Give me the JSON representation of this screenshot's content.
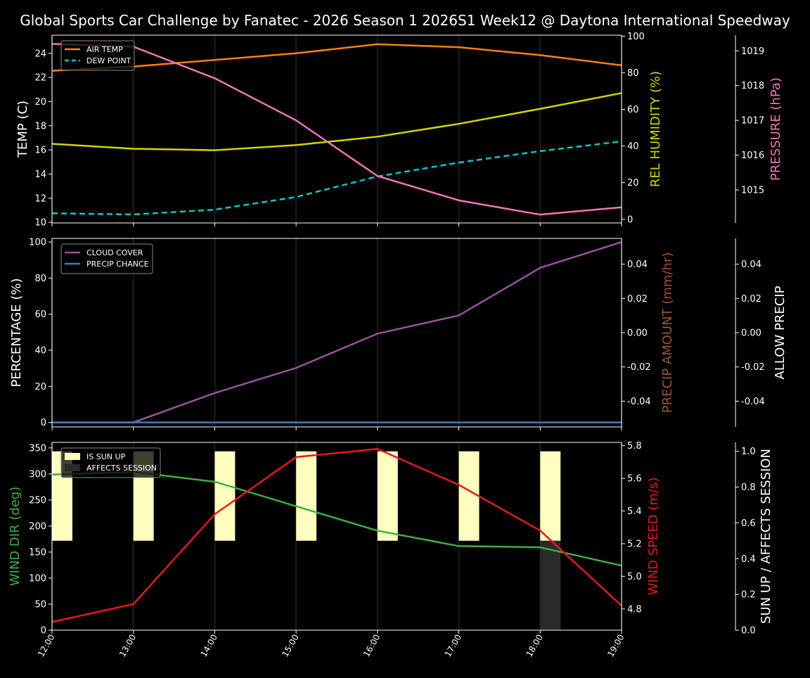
{
  "title": "Global Sports Car Challenge by Fanatec - 2026 Season 1 2026S1 Week12 @ Daytona International Speedway",
  "x_ticks": [
    "12:00",
    "13:00",
    "14:00",
    "15:00",
    "16:00",
    "17:00",
    "18:00",
    "19:00"
  ],
  "chart_data": [
    {
      "type": "line",
      "x": [
        "12:00",
        "13:00",
        "14:00",
        "15:00",
        "16:00",
        "17:00",
        "18:00",
        "19:00"
      ],
      "grid": "vertical",
      "legend": "top-left",
      "axes": [
        {
          "side": "left",
          "label": "TEMP (C)",
          "ylim": [
            9.95,
            25.5
          ],
          "ticks": [
            10,
            12,
            14,
            16,
            18,
            20,
            22,
            24
          ],
          "color": "#ffffff"
        },
        {
          "side": "right",
          "label": "REL HUMIDITY (%)",
          "ylim": [
            -2,
            100.5
          ],
          "ticks": [
            0,
            20,
            40,
            60,
            80,
            100
          ],
          "color": "#d4d400"
        },
        {
          "side": "right-outer",
          "label": "PRESSURE (hPa)",
          "ylim": [
            1014.05,
            1019.45
          ],
          "ticks": [
            1015,
            1016,
            1017,
            1018,
            1019
          ],
          "color": "#f075b8"
        }
      ],
      "series": [
        {
          "name": "AIR TEMP",
          "axis": 0,
          "color": "#ff7f0e",
          "dash": false,
          "legend": true,
          "values": [
            22.55,
            22.9,
            23.45,
            24.0,
            24.75,
            24.5,
            23.85,
            23.0
          ]
        },
        {
          "name": "DEW POINT",
          "axis": 0,
          "color": "#17c3c8",
          "dash": true,
          "legend": true,
          "values": [
            10.75,
            10.65,
            11.05,
            12.1,
            13.8,
            14.95,
            15.9,
            16.7
          ]
        },
        {
          "axis": 1,
          "color": "#d4d400",
          "dash": false,
          "legend": false,
          "values": [
            41.2,
            38.5,
            37.7,
            40.5,
            45.1,
            52.1,
            60.3,
            68.9
          ]
        },
        {
          "axis": 2,
          "color": "#f075b8",
          "dash": false,
          "legend": false,
          "values": [
            1019.2,
            1019.12,
            1018.21,
            1017.0,
            1015.4,
            1014.7,
            1014.29,
            1014.5
          ]
        }
      ]
    },
    {
      "type": "line",
      "x": [
        "12:00",
        "13:00",
        "14:00",
        "15:00",
        "16:00",
        "17:00",
        "18:00",
        "19:00"
      ],
      "grid": "vertical",
      "legend": "top-left",
      "axes": [
        {
          "side": "left",
          "label": "PERCENTAGE (%)",
          "ylim": [
            -2.5,
            102
          ],
          "ticks": [
            0,
            20,
            40,
            60,
            80,
            100
          ],
          "color": "#ffffff"
        },
        {
          "side": "right",
          "label": "PRECIP AMOUNT (mm/hr)",
          "ylim": [
            -0.055,
            0.055
          ],
          "ticks": [
            -0.04,
            -0.02,
            0.0,
            0.02,
            0.04
          ],
          "color": "#a0522d"
        },
        {
          "side": "right-outer",
          "label": "ALLOW PRECIP",
          "ylim": [
            -0.055,
            0.055
          ],
          "ticks": [
            -0.04,
            -0.02,
            0.0,
            0.02,
            0.04
          ],
          "color": "#ffffff"
        }
      ],
      "series": [
        {
          "name": "CLOUD COVER",
          "axis": 0,
          "color": "#9b4f9f",
          "dash": false,
          "legend": true,
          "values": [
            0,
            0,
            16.3,
            30.2,
            49.2,
            59.3,
            85.7,
            100
          ]
        },
        {
          "name": "PRECIP CHANCE",
          "axis": 0,
          "color": "#3a7fc0",
          "dash": false,
          "legend": true,
          "values": [
            0,
            0,
            0,
            0,
            0,
            0,
            0,
            0
          ]
        }
      ]
    },
    {
      "type": "line",
      "x": [
        "12:00",
        "13:00",
        "14:00",
        "15:00",
        "16:00",
        "17:00",
        "18:00",
        "19:00"
      ],
      "grid": "vertical",
      "legend": "top-left",
      "axes": [
        {
          "side": "left",
          "label": "WIND DIR (deg)",
          "ylim": [
            0,
            360.6
          ],
          "ticks": [
            0,
            50,
            100,
            150,
            200,
            250,
            300,
            350
          ],
          "color": "#3fae3f"
        },
        {
          "side": "right",
          "label": "WIND SPEED (m/s)",
          "ylim": [
            4.67,
            5.82
          ],
          "ticks": [
            4.8,
            5.0,
            5.2,
            5.4,
            5.6,
            5.8
          ],
          "color": "#e31a1c"
        },
        {
          "side": "right-outer",
          "label": "SUN UP / AFFECTS SESSION",
          "ylim": [
            0,
            1.05
          ],
          "ticks": [
            0.0,
            0.2,
            0.4,
            0.6,
            0.8,
            1.0
          ],
          "color": "#ffffff"
        }
      ],
      "bars": [
        {
          "name": "IS SUN UP",
          "axis": 2,
          "color": "#ffffc0",
          "ranges": [
            [
              0.5,
              1
            ],
            [
              0.5,
              1
            ],
            [
              0.5,
              1
            ],
            [
              0.5,
              1
            ],
            [
              0.5,
              1
            ],
            [
              0.5,
              1
            ],
            [
              0.5,
              1
            ],
            null
          ]
        },
        {
          "name": "AFFECTS SESSION",
          "axis": 2,
          "color": "#2a2a2a",
          "ranges": [
            null,
            null,
            null,
            null,
            null,
            null,
            [
              0,
              0.5
            ],
            null
          ]
        }
      ],
      "series": [
        {
          "axis": 0,
          "color": "#3fae3f",
          "dash": false,
          "legend": false,
          "values": [
            298.8,
            304,
            285,
            238,
            191,
            161.5,
            159,
            124
          ]
        },
        {
          "axis": 1,
          "color": "#e31a1c",
          "dash": false,
          "legend": false,
          "values": [
            4.72,
            4.83,
            5.38,
            5.73,
            5.78,
            5.56,
            5.28,
            4.82
          ]
        }
      ]
    }
  ]
}
